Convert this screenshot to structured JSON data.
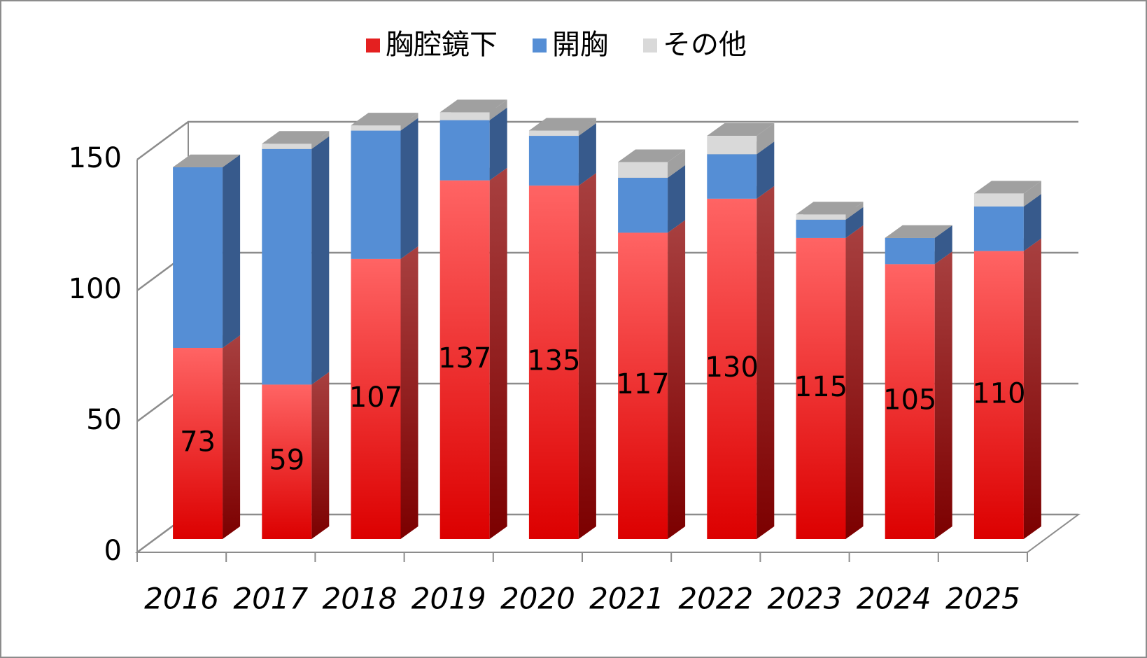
{
  "chart_data": {
    "type": "bar3d_stacked",
    "categories": [
      "2016",
      "2017",
      "2018",
      "2019",
      "2020",
      "2021",
      "2022",
      "2023",
      "2024",
      "2025"
    ],
    "series": [
      {
        "name": "胸腔鏡下",
        "color": "#e42020",
        "values": [
          73,
          59,
          107,
          137,
          135,
          117,
          130,
          115,
          105,
          110
        ],
        "data_labels": true
      },
      {
        "name": "開胸",
        "color": "#558ed5",
        "values": [
          69,
          90,
          49,
          23,
          19,
          21,
          17,
          7,
          10,
          17
        ]
      },
      {
        "name": "その他",
        "color": "#d9d9d9",
        "values": [
          0,
          2,
          2,
          3,
          2,
          6,
          7,
          2,
          0,
          5
        ]
      }
    ],
    "ylim": [
      0,
      150
    ],
    "yticks": [
      0,
      50,
      100,
      150
    ],
    "grid": true,
    "legend": "top"
  }
}
